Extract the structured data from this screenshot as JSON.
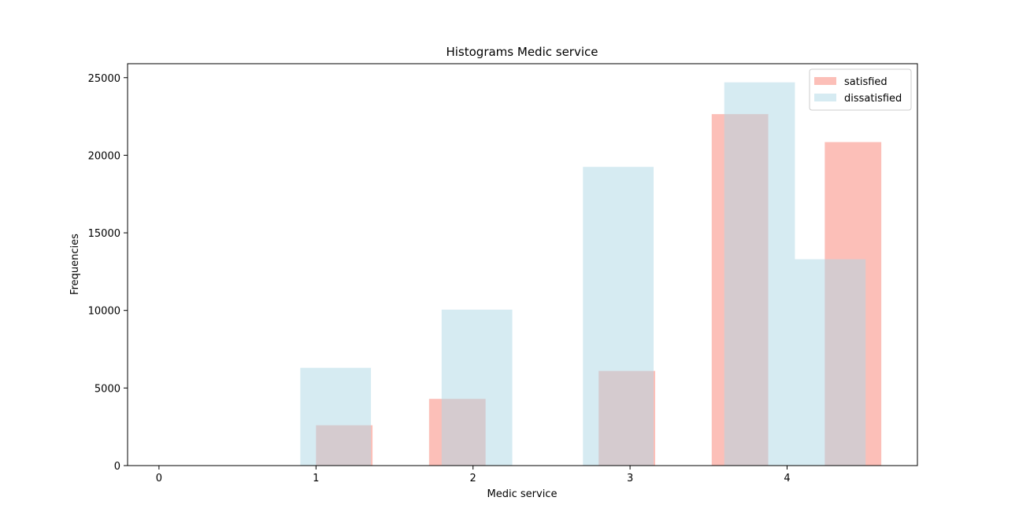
{
  "chart_data": {
    "type": "bar",
    "title": "Histograms Medic service",
    "xlabel": "Medic service",
    "ylabel": "Frequencies",
    "xlim": [
      -0.2,
      4.83
    ],
    "ylim": [
      0,
      25900
    ],
    "xticks": [
      "0",
      "1",
      "2",
      "3",
      "4"
    ],
    "yticks": [
      "0",
      "5000",
      "10000",
      "15000",
      "20000",
      "25000"
    ],
    "legend": {
      "placement": "top-right"
    },
    "series": [
      {
        "name": "satisfied",
        "color": "#fa8072",
        "opacity": 0.5,
        "bars": [
          {
            "x0": 1.0,
            "x1": 1.36,
            "value": 2600
          },
          {
            "x0": 1.72,
            "x1": 2.08,
            "value": 4300
          },
          {
            "x0": 2.8,
            "x1": 3.16,
            "value": 6100
          },
          {
            "x0": 3.52,
            "x1": 3.88,
            "value": 22650
          },
          {
            "x0": 4.24,
            "x1": 4.6,
            "value": 20850
          }
        ]
      },
      {
        "name": "dissatisfied",
        "color": "#add8e6",
        "opacity": 0.5,
        "bars": [
          {
            "x0": 0.9,
            "x1": 1.35,
            "value": 6300
          },
          {
            "x0": 1.8,
            "x1": 2.25,
            "value": 10050
          },
          {
            "x0": 2.7,
            "x1": 3.15,
            "value": 19250
          },
          {
            "x0": 3.6,
            "x1": 4.05,
            "value": 24700
          },
          {
            "x0": 4.05,
            "x1": 4.5,
            "value": 13300
          }
        ]
      }
    ]
  }
}
